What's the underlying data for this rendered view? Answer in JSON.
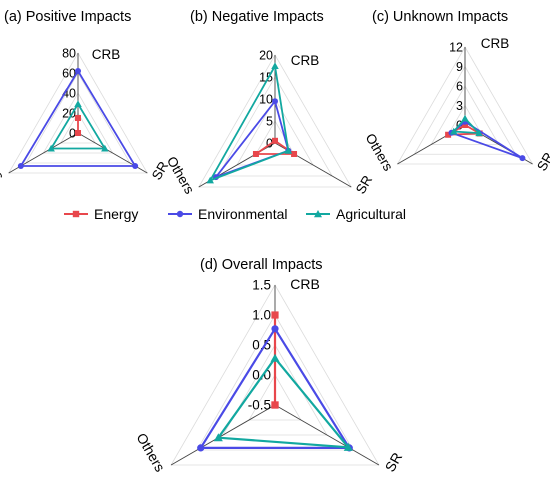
{
  "chart_data": [
    {
      "type": "radar",
      "title": "(a) Positive Impacts",
      "axes": [
        "CRB",
        "SR",
        "Others"
      ],
      "ticks": [
        "0",
        "20",
        "40",
        "60",
        "80"
      ],
      "rlim": [
        0,
        80
      ],
      "series": [
        {
          "name": "Energy",
          "values": [
            15,
            0,
            0
          ]
        },
        {
          "name": "Environmental",
          "values": [
            62,
            66,
            66
          ]
        },
        {
          "name": "Agricultural",
          "values": [
            29,
            31,
            31
          ]
        }
      ]
    },
    {
      "type": "radar",
      "title": "(b) Negative Impacts",
      "axes": [
        "CRB",
        "SR",
        "Others"
      ],
      "ticks": [
        "0",
        "5",
        "10",
        "15",
        "20"
      ],
      "rlim": [
        0,
        20
      ],
      "series": [
        {
          "name": "Energy",
          "values": [
            0.5,
            5,
            5
          ]
        },
        {
          "name": "Environmental",
          "values": [
            9.5,
            3.5,
            15.5
          ]
        },
        {
          "name": "Agricultural",
          "values": [
            17.5,
            3.5,
            17
          ]
        }
      ]
    },
    {
      "type": "radar",
      "title": "(c) Unknown Impacts",
      "axes": [
        "CRB",
        "SR",
        "Others"
      ],
      "ticks": [
        "0",
        "3",
        "6",
        "9",
        "12"
      ],
      "rlim": [
        0,
        12
      ],
      "series": [
        {
          "name": "Energy",
          "values": [
            0,
            2.6,
            3
          ]
        },
        {
          "name": "Environmental",
          "values": [
            0.5,
            10.2,
            2.4
          ]
        },
        {
          "name": "Agricultural",
          "values": [
            1,
            2.5,
            2
          ]
        }
      ]
    },
    {
      "type": "radar",
      "title": "(d) Overall Impacts",
      "axes": [
        "CRB",
        "SR",
        "Others"
      ],
      "ticks": [
        "-0.5",
        "0.0",
        "0.5",
        "1.0",
        "1.5"
      ],
      "rlim": [
        -0.5,
        1.5
      ],
      "series": [
        {
          "name": "Energy",
          "values": [
            1.0,
            -0.5,
            -0.5
          ]
        },
        {
          "name": "Environmental",
          "values": [
            0.77,
            0.93,
            0.93
          ]
        },
        {
          "name": "Agricultural",
          "values": [
            0.28,
            0.91,
            0.59
          ]
        }
      ]
    }
  ],
  "legend": [
    {
      "label": "Energy",
      "color": "#e8474c",
      "marker": "square"
    },
    {
      "label": "Environmental",
      "color": "#4a4ae6",
      "marker": "circle"
    },
    {
      "label": "Agricultural",
      "color": "#12a8a0",
      "marker": "triangle"
    }
  ]
}
